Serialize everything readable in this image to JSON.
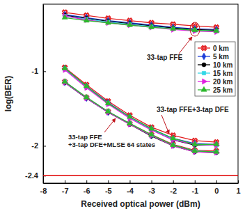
{
  "chart_data": {
    "type": "line",
    "xlabel": "Received optical power (dBm)",
    "ylabel": "log(BER)",
    "x": [
      -7,
      -6,
      -5,
      -4,
      -3,
      -2,
      -1,
      0
    ],
    "xlim": [
      -8,
      1
    ],
    "xticks": [
      -8,
      -7,
      -6,
      -5,
      -4,
      -3,
      -2,
      -1,
      0,
      1
    ],
    "ylim": [
      -2.5,
      -0.1
    ],
    "yticks": [
      -1,
      -2,
      -2.4
    ],
    "grid": false,
    "legend": "right",
    "hline": {
      "value": -2.4,
      "color": "#e00000"
    },
    "annotations": [
      [
        "33-tap FFE"
      ],
      [
        "33-tap FFE+3-tap DFE"
      ],
      [
        "33-tap FFE",
        "+3-tap DFE+MLSE 64 states"
      ]
    ],
    "series": [
      {
        "name": "0 km",
        "color": "#e31a1c",
        "marker": "x",
        "values": [
          [
            -0.21,
            -0.25,
            -0.29,
            -0.32,
            -0.35,
            -0.37,
            -0.39,
            -0.41
          ],
          [
            -0.95,
            -1.18,
            -1.4,
            -1.59,
            -1.75,
            -1.86,
            -1.93,
            -1.95
          ],
          [
            -1.14,
            -1.35,
            -1.54,
            -1.7,
            -1.85,
            -1.98,
            -2.06,
            -2.07
          ]
        ]
      },
      {
        "name": "5 km",
        "color": "#1f3fd8",
        "marker": "diamond",
        "values": [
          [
            -0.24,
            -0.28,
            -0.32,
            -0.35,
            -0.38,
            -0.41,
            -0.43,
            -0.44
          ],
          [
            -0.96,
            -1.2,
            -1.42,
            -1.61,
            -1.77,
            -1.9,
            -1.97,
            -1.98
          ],
          [
            -1.15,
            -1.36,
            -1.55,
            -1.7,
            -1.86,
            -1.99,
            -2.07,
            -2.08
          ]
        ]
      },
      {
        "name": "10 km",
        "color": "#000000",
        "marker": "circle",
        "values": [
          [
            -0.25,
            -0.29,
            -0.33,
            -0.36,
            -0.39,
            -0.42,
            -0.44,
            -0.45
          ],
          [
            -0.97,
            -1.21,
            -1.43,
            -1.62,
            -1.78,
            -1.92,
            -1.99,
            -1.99
          ],
          [
            -1.15,
            -1.36,
            -1.55,
            -1.71,
            -1.87,
            -2.0,
            -2.08,
            -2.09
          ]
        ]
      },
      {
        "name": "15 km",
        "color": "#33d6e6",
        "marker": "square",
        "values": [
          [
            -0.26,
            -0.3,
            -0.34,
            -0.37,
            -0.4,
            -0.43,
            -0.45,
            -0.46
          ],
          [
            -0.97,
            -1.21,
            -1.43,
            -1.62,
            -1.78,
            -1.91,
            -1.98,
            -1.99
          ],
          [
            -1.14,
            -1.35,
            -1.54,
            -1.7,
            -1.86,
            -1.99,
            -2.07,
            -2.08
          ]
        ]
      },
      {
        "name": "20 km",
        "color": "#e020e0",
        "marker": "triangle-right",
        "values": [
          [
            -0.26,
            -0.31,
            -0.35,
            -0.38,
            -0.41,
            -0.44,
            -0.46,
            -0.47
          ],
          [
            -0.98,
            -1.22,
            -1.44,
            -1.63,
            -1.79,
            -1.92,
            -1.98,
            -1.99
          ],
          [
            -1.15,
            -1.36,
            -1.55,
            -1.71,
            -1.86,
            -2.0,
            -2.08,
            -2.09
          ]
        ]
      },
      {
        "name": "25 km",
        "color": "#2db82d",
        "marker": "triangle-up",
        "values": [
          [
            -0.28,
            -0.32,
            -0.35,
            -0.38,
            -0.41,
            -0.43,
            -0.45,
            -0.46
          ],
          [
            -0.96,
            -1.2,
            -1.43,
            -1.61,
            -1.77,
            -1.9,
            -1.98,
            -1.98
          ],
          [
            -1.14,
            -1.35,
            -1.54,
            -1.7,
            -1.85,
            -1.99,
            -2.07,
            -2.08
          ]
        ]
      }
    ]
  }
}
